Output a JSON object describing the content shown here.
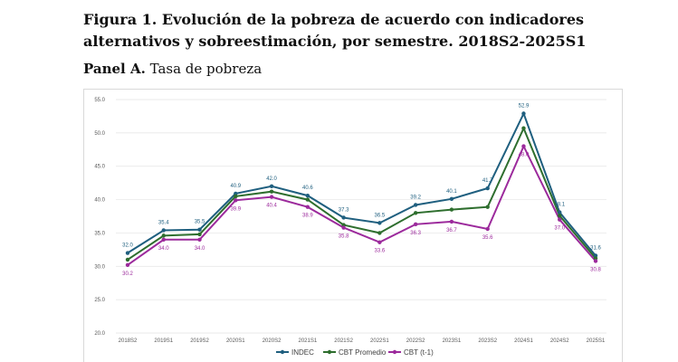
{
  "figure": {
    "title": "Figura 1. Evolución de la pobreza de acuerdo con indicadores alternativos y sobreestimación, por semestre. 2018S2-2025S1",
    "panel_label": "Panel A.",
    "panel_subtitle": "Tasa de pobreza"
  },
  "chart_data": {
    "type": "line",
    "title": "",
    "xlabel": "",
    "ylabel": "",
    "ylim": [
      20.0,
      55.0
    ],
    "ytick_step": 5,
    "yticks": [
      "20.0",
      "25.0",
      "30.0",
      "35.0",
      "40.0",
      "45.0",
      "50.0",
      "55.0"
    ],
    "grid": true,
    "legend_position": "bottom",
    "categories": [
      "2018S2",
      "2019S1",
      "2019S2",
      "2020S1",
      "2020S2",
      "2021S1",
      "2021S2",
      "2022S1",
      "2022S2",
      "2023S1",
      "2023S2",
      "2024S1",
      "2024S2",
      "2025S1"
    ],
    "series": [
      {
        "name": "INDEC",
        "color": "#1f5f7f",
        "values": [
          32.0,
          35.4,
          35.5,
          40.9,
          42.0,
          40.6,
          37.3,
          36.5,
          39.2,
          40.1,
          41.7,
          52.9,
          38.1,
          31.6
        ],
        "labels": [
          "32.0",
          "35.4",
          "35.5",
          "40.9",
          "42.0",
          "40.6",
          "37.3",
          "36.5",
          "39.2",
          "40.1",
          "41.7",
          "52.9",
          "38.1",
          "31.6"
        ],
        "label_position": "above",
        "label_color": "#1f5f7f"
      },
      {
        "name": "CBT Promedio",
        "color": "#2e6e2e",
        "values": [
          31.0,
          34.6,
          34.8,
          40.5,
          41.2,
          40.0,
          36.2,
          35.0,
          38.0,
          38.5,
          38.9,
          50.7,
          37.6,
          31.2
        ],
        "labels": [],
        "label_position": "none",
        "label_color": "#2e6e2e"
      },
      {
        "name": "CBT (t-1)",
        "color": "#9c2a9c",
        "values": [
          30.2,
          34.0,
          34.0,
          39.9,
          40.4,
          38.9,
          35.8,
          33.6,
          36.3,
          36.7,
          35.6,
          48.0,
          37.0,
          30.8
        ],
        "labels": [
          "30.2",
          "34.0",
          "34.0",
          "39.9",
          "40.4",
          "38.9",
          "35.8",
          "33.6",
          "36.3",
          "36.7",
          "35.6",
          "48.0",
          "37.0",
          "30.8"
        ],
        "label_position": "below",
        "label_color": "#9c2a9c"
      }
    ]
  }
}
